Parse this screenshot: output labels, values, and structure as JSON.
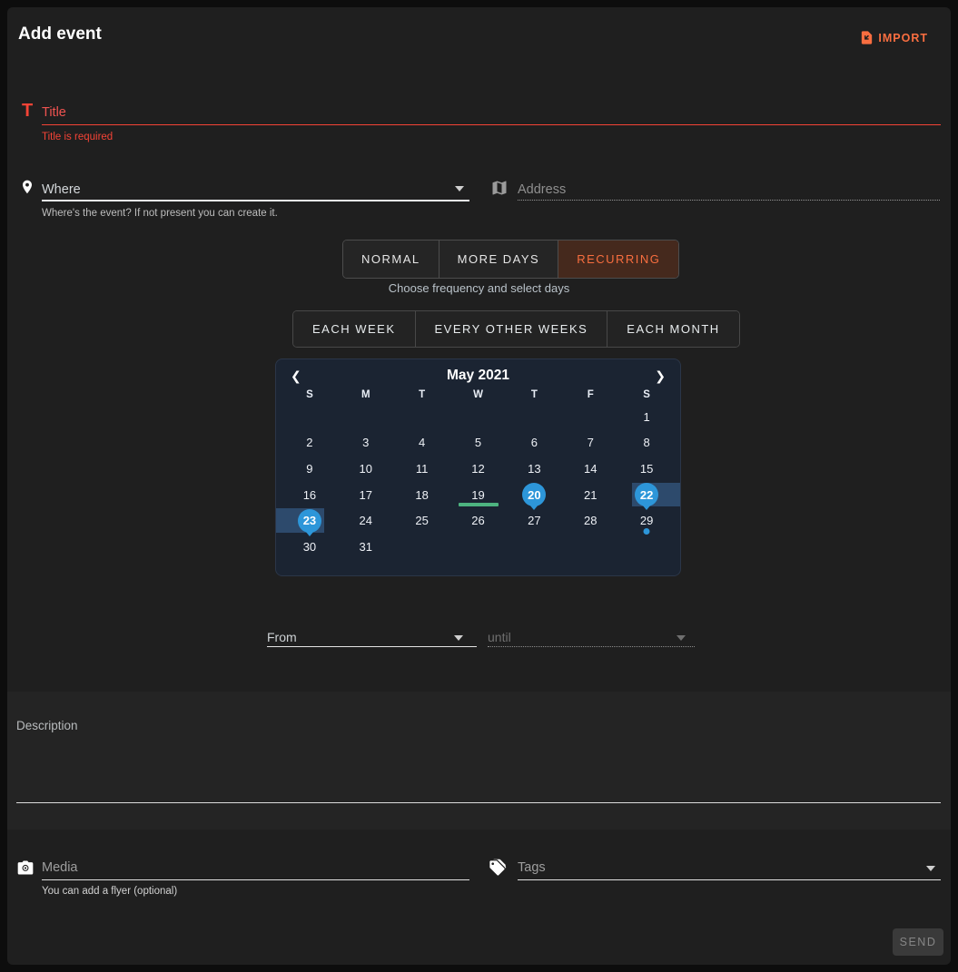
{
  "header": {
    "title": "Add event",
    "import_label": "IMPORT"
  },
  "title_field": {
    "placeholder": "Title",
    "error": "Title is required"
  },
  "where_field": {
    "placeholder": "Where",
    "helper": "Where's the event? If not present you can create it."
  },
  "address_field": {
    "placeholder": "Address"
  },
  "event_type_tabs": {
    "items": [
      {
        "label": "NORMAL",
        "selected": false
      },
      {
        "label": "MORE DAYS",
        "selected": false
      },
      {
        "label": "RECURRING",
        "selected": true
      }
    ],
    "caption": "Choose frequency and select days"
  },
  "frequency_options": [
    {
      "label": "EACH WEEK"
    },
    {
      "label": "EVERY OTHER WEEKS"
    },
    {
      "label": "EACH MONTH"
    }
  ],
  "calendar": {
    "month_title": "May 2021",
    "weekdays": [
      "S",
      "M",
      "T",
      "W",
      "T",
      "F",
      "S"
    ],
    "weeks": [
      [
        null,
        null,
        null,
        null,
        null,
        null,
        {
          "d": 1
        }
      ],
      [
        {
          "d": 2
        },
        {
          "d": 3
        },
        {
          "d": 4
        },
        {
          "d": 5
        },
        {
          "d": 6
        },
        {
          "d": 7
        },
        {
          "d": 8
        }
      ],
      [
        {
          "d": 9
        },
        {
          "d": 10
        },
        {
          "d": 11
        },
        {
          "d": 12
        },
        {
          "d": 13
        },
        {
          "d": 14
        },
        {
          "d": 15
        }
      ],
      [
        {
          "d": 16
        },
        {
          "d": 17
        },
        {
          "d": 18
        },
        {
          "d": 19,
          "underline": true
        },
        {
          "d": 20,
          "marker": true
        },
        {
          "d": 21
        },
        {
          "d": 22,
          "marker": true,
          "band": "right"
        }
      ],
      [
        {
          "d": 23,
          "marker": true,
          "band": "left"
        },
        {
          "d": 24
        },
        {
          "d": 25
        },
        {
          "d": 26
        },
        {
          "d": 27
        },
        {
          "d": 28
        },
        {
          "d": 29,
          "dot": true
        }
      ],
      [
        {
          "d": 30
        },
        {
          "d": 31
        },
        null,
        null,
        null,
        null,
        null
      ]
    ]
  },
  "time_fields": {
    "from_placeholder": "From",
    "until_placeholder": "until"
  },
  "description_field": {
    "placeholder": "Description"
  },
  "media_field": {
    "placeholder": "Media",
    "helper": "You can add a flyer (optional)"
  },
  "tags_field": {
    "placeholder": "Tags"
  },
  "send_button": {
    "label": "SEND"
  },
  "colors": {
    "accent_orange": "#f96e40",
    "error_red": "#f44336",
    "marker_blue": "#2d96d9",
    "range_blue": "#2d4a6c",
    "highlight_green": "#4db380",
    "calendar_bg": "#1b2432"
  }
}
